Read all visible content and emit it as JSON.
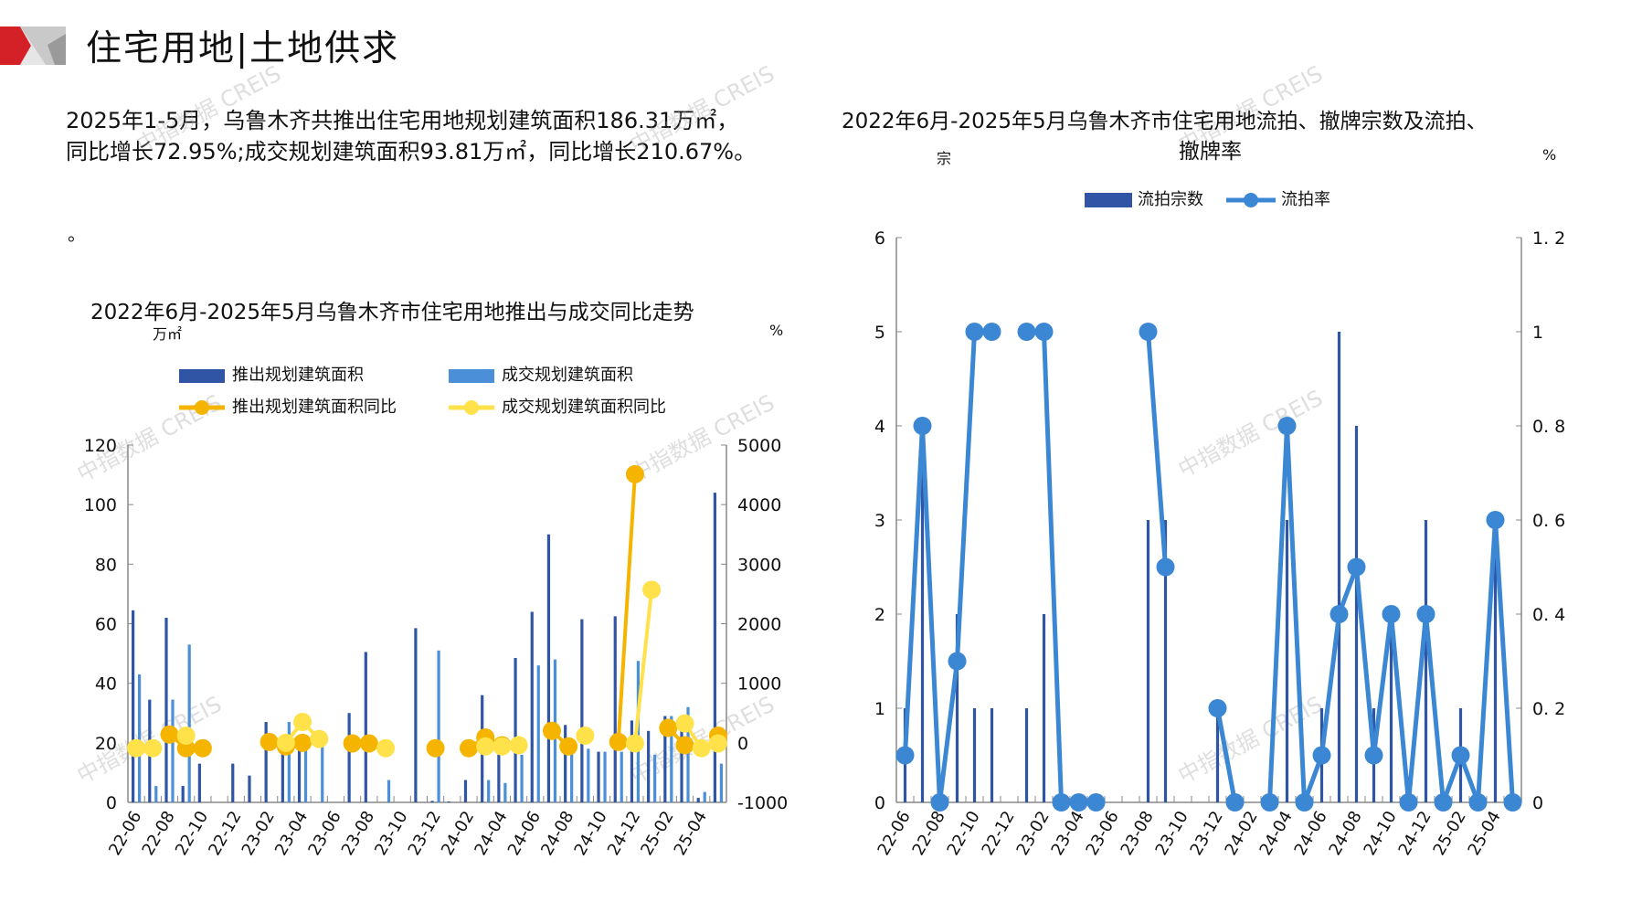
{
  "header": {
    "title": "住宅用地|土地供求"
  },
  "summary": {
    "line1": "2025年1-5月，乌鲁木齐共推出住宅用地规划建筑面积186.31万㎡，",
    "line2": "同比增长72.95%;成交规划建筑面积93.81万㎡，同比增长210.67%。",
    "stray": "。"
  },
  "watermark": "中指数据 CREIS",
  "colors": {
    "dark_bar": "#2f55a4",
    "light_bar": "#4a8fd8",
    "orange": "#f5b400",
    "yellow": "#ffe14a",
    "rate_line": "#3b87d4",
    "axis": "#888888"
  },
  "chart_data": [
    {
      "type": "bar",
      "title": "2022年6月-2025年5月乌鲁木齐市住宅用地推出与成交同比走势",
      "ylabel": "万㎡",
      "y2label": "%",
      "ylim": [
        0,
        120
      ],
      "y2lim": [
        -1000,
        5000
      ],
      "yticks": [
        "0",
        "20",
        "40",
        "60",
        "80",
        "100",
        "120"
      ],
      "y2ticks": [
        "-1000",
        "0",
        "1000",
        "2000",
        "3000",
        "4000",
        "5000"
      ],
      "legend": [
        "推出规划建筑面积",
        "成交规划建筑面积",
        "推出规划建筑面积同比",
        "成交规划建筑面积同比"
      ],
      "legend_position": "top",
      "xticks": [
        "22-06",
        "22-08",
        "22-10",
        "22-12",
        "23-02",
        "23-04",
        "23-06",
        "23-08",
        "23-10",
        "23-12",
        "24-02",
        "24-04",
        "24-06",
        "24-08",
        "24-10",
        "24-12",
        "25-02",
        "25-04"
      ],
      "months": 36,
      "series": [
        {
          "name": "推出规划建筑面积",
          "kind": "bar",
          "values": [
            64.5,
            34.5,
            62,
            5.5,
            13,
            0,
            13,
            9,
            27,
            18,
            20,
            0,
            0,
            30,
            50.5,
            0,
            0,
            58.5,
            0.5,
            0.3,
            7.5,
            36,
            16,
            48.5,
            64,
            90,
            26,
            61.5,
            17,
            62.5,
            27.5,
            24,
            29,
            29,
            1.5,
            104
          ]
        },
        {
          "name": "成交规划建筑面积",
          "kind": "bar",
          "values": [
            43,
            5.5,
            34.5,
            53,
            0,
            0,
            0,
            0,
            0,
            27,
            18,
            20,
            0,
            0,
            0,
            7.5,
            0,
            0,
            51,
            0,
            0,
            7.5,
            6.5,
            16,
            46,
            48,
            17,
            18,
            17,
            17,
            47.5,
            16,
            29,
            32,
            3.5,
            13
          ]
        },
        {
          "name": "推出规划建筑面积同比",
          "kind": "line",
          "axis": "right",
          "values": [
            -90,
            null,
            140,
            -90,
            -90,
            null,
            null,
            null,
            15,
            -60,
            0,
            null,
            null,
            -10,
            -10,
            null,
            null,
            null,
            -90,
            null,
            -90,
            90,
            -40,
            null,
            null,
            200,
            -60,
            null,
            null,
            15,
            4510,
            null,
            250,
            -40,
            null,
            120
          ]
        },
        {
          "name": "成交规划建筑面积同比",
          "kind": "line",
          "axis": "right",
          "values": [
            -90,
            -90,
            null,
            120,
            null,
            null,
            null,
            null,
            null,
            0,
            350,
            65,
            null,
            null,
            null,
            -90,
            null,
            null,
            null,
            null,
            null,
            -60,
            -60,
            -40,
            null,
            null,
            null,
            120,
            null,
            null,
            -10,
            2570,
            null,
            325,
            -90,
            -10
          ]
        }
      ]
    },
    {
      "type": "bar",
      "title_line1": "2022年6月-2025年5月乌鲁木齐市住宅用地流拍、撤牌宗数及流拍、",
      "title_line2": "撤牌率",
      "ylabel": "宗",
      "y2label": "%",
      "ylim": [
        0,
        6
      ],
      "y2lim": [
        0,
        1.2
      ],
      "yticks": [
        "0",
        "1",
        "2",
        "3",
        "4",
        "5",
        "6"
      ],
      "y2ticks": [
        "0",
        "0. 2",
        "0. 4",
        "0. 6",
        "0. 8",
        "1",
        "1. 2"
      ],
      "legend": [
        "流拍宗数",
        "流拍率"
      ],
      "legend_position": "top",
      "xticks": [
        "22-06",
        "22-08",
        "22-10",
        "22-12",
        "23-02",
        "23-04",
        "23-06",
        "23-08",
        "23-10",
        "23-12",
        "24-02",
        "24-04",
        "24-06",
        "24-08",
        "24-10",
        "24-12",
        "25-02",
        "25-04"
      ],
      "months": 36,
      "series": [
        {
          "name": "流拍宗数",
          "kind": "bar",
          "values": [
            1,
            4,
            0,
            2,
            1,
            1,
            0,
            1,
            2,
            0,
            0,
            0,
            0,
            0,
            3,
            3,
            0,
            0,
            1,
            0,
            0,
            0,
            3,
            0,
            1,
            5,
            4,
            1,
            2,
            0,
            3,
            0,
            1,
            0,
            3,
            0
          ]
        },
        {
          "name": "流拍率",
          "kind": "line",
          "axis": "right",
          "values": [
            0.1,
            0.8,
            0,
            0.3,
            1,
            1,
            null,
            1,
            1,
            0,
            0,
            0,
            null,
            null,
            1,
            0.5,
            null,
            null,
            0.2,
            0,
            null,
            0,
            0.8,
            0,
            0.1,
            0.4,
            0.5,
            0.1,
            0.4,
            0,
            0.4,
            0,
            0.1,
            0,
            0.6,
            0
          ]
        }
      ]
    }
  ]
}
